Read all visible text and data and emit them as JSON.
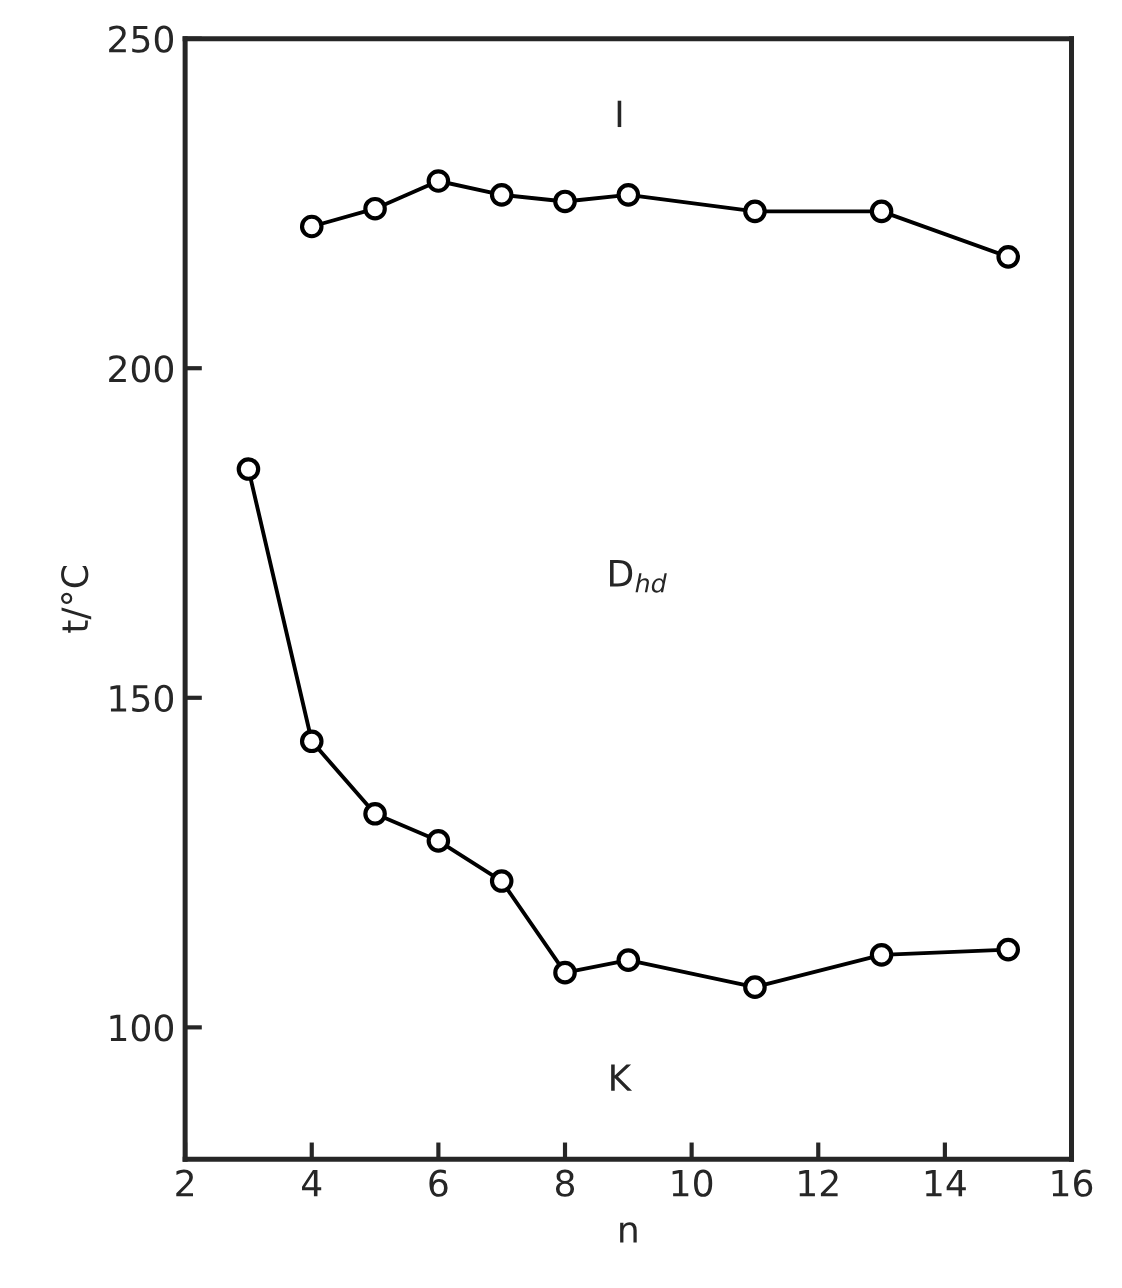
{
  "chart_data": {
    "type": "line",
    "xlabel": "n",
    "ylabel": "t/°C",
    "series": [
      {
        "color": "#000000",
        "x": [
          4,
          5,
          6,
          7,
          8,
          9,
          11,
          13,
          15
        ],
        "values": [
          221.5,
          224.2,
          228.4,
          226.3,
          225.3,
          226.3,
          223.8,
          223.8,
          216.9
        ]
      },
      {
        "color": "#000000",
        "x": [
          3,
          4,
          5,
          6,
          7,
          8,
          9,
          11,
          13,
          15
        ],
        "values": [
          184.7,
          143.4,
          132.4,
          128.3,
          122.2,
          108.3,
          110.2,
          106.1,
          111.0,
          111.8
        ]
      }
    ],
    "xlim": [
      2,
      16
    ],
    "xticks": [
      2,
      4,
      6,
      8,
      10,
      12,
      14,
      16
    ],
    "ylim": [
      80,
      250
    ],
    "yticks": [
      100,
      150,
      200,
      250
    ],
    "marker": "circle",
    "line_style": "solid",
    "grid": false,
    "annotations": [
      "I",
      "D$_{hd}$",
      "K"
    ]
  }
}
